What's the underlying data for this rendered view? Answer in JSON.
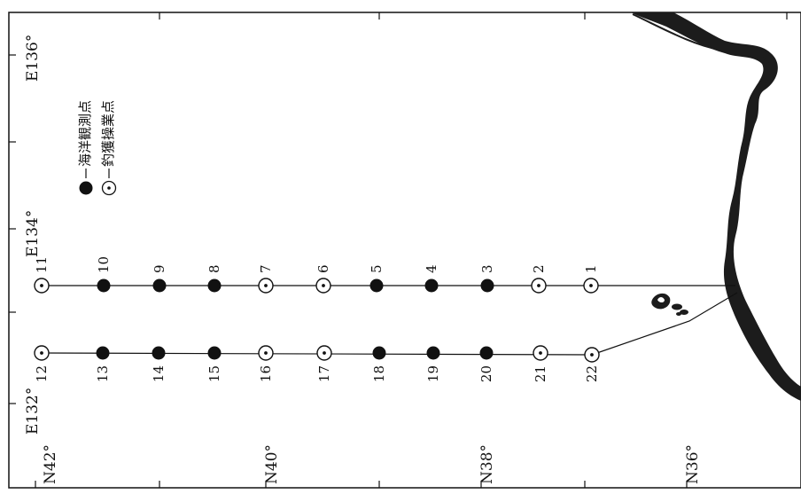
{
  "map": {
    "longitude_labels": [
      {
        "id": "e136",
        "text": "E136°"
      },
      {
        "id": "e134",
        "text": "E134°"
      },
      {
        "id": "e132",
        "text": "E132°"
      }
    ],
    "latitude_labels": [
      {
        "id": "n42",
        "text": "N42°"
      },
      {
        "id": "n40",
        "text": "N40°"
      },
      {
        "id": "n38",
        "text": "N38°"
      },
      {
        "id": "n36",
        "text": "N36°"
      }
    ],
    "legend": {
      "observation_label": "海洋観測点",
      "fishing_label": "釣獲操業点"
    },
    "stations": [
      {
        "number": "1",
        "type": "fishing"
      },
      {
        "number": "2",
        "type": "fishing"
      },
      {
        "number": "3",
        "type": "observation"
      },
      {
        "number": "4",
        "type": "observation"
      },
      {
        "number": "5",
        "type": "observation"
      },
      {
        "number": "6",
        "type": "fishing"
      },
      {
        "number": "7",
        "type": "fishing"
      },
      {
        "number": "8",
        "type": "observation"
      },
      {
        "number": "9",
        "type": "observation"
      },
      {
        "number": "10",
        "type": "observation"
      },
      {
        "number": "11",
        "type": "fishing"
      },
      {
        "number": "12",
        "type": "fishing"
      },
      {
        "number": "13",
        "type": "observation"
      },
      {
        "number": "14",
        "type": "observation"
      },
      {
        "number": "15",
        "type": "observation"
      },
      {
        "number": "16",
        "type": "fishing"
      },
      {
        "number": "17",
        "type": "fishing"
      },
      {
        "number": "18",
        "type": "observation"
      },
      {
        "number": "19",
        "type": "observation"
      },
      {
        "number": "20",
        "type": "observation"
      },
      {
        "number": "21",
        "type": "fishing"
      },
      {
        "number": "22",
        "type": "fishing"
      }
    ],
    "colors": {
      "ink": "#111111",
      "land": "#1c1c1c",
      "paper": "#ffffff"
    }
  }
}
